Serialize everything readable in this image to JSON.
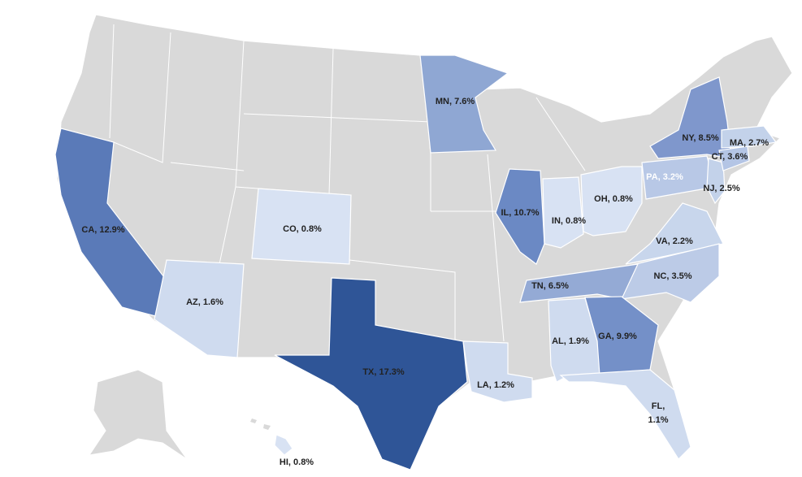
{
  "states": [
    {
      "label": "CA, 12.9%",
      "value": 12.9,
      "color": "#5a7ab8"
    },
    {
      "label": "AZ, 1.6%",
      "value": 1.6,
      "color": "#cfdbef"
    },
    {
      "label": "CO, 0.8%",
      "value": 0.8,
      "color": "#d8e2f3"
    },
    {
      "label": "TX, 17.3%",
      "value": 17.3,
      "color": "#2f5597"
    },
    {
      "label": "MN, 7.6%",
      "value": 7.6,
      "color": "#8fa7d3"
    },
    {
      "label": "IL, 10.7%",
      "value": 10.7,
      "color": "#6b89c4"
    },
    {
      "label": "IN, 0.8%",
      "value": 0.8,
      "color": "#d8e2f3"
    },
    {
      "label": "OH, 0.8%",
      "value": 0.8,
      "color": "#d8e2f3"
    },
    {
      "label": "PA, 3.2%",
      "value": 3.2,
      "color": "#b8c8e6"
    },
    {
      "label": "NY, 8.5%",
      "value": 8.5,
      "color": "#7f97cc"
    },
    {
      "label": "NJ, 2.5%",
      "value": 2.5,
      "color": "#c3d2ea"
    },
    {
      "label": "CT, 3.6%",
      "value": 3.6,
      "color": "#b4c5e5"
    },
    {
      "label": "MA, 2.7%",
      "value": 2.7,
      "color": "#c3d2ea"
    },
    {
      "label": "VA, 2.2%",
      "value": 2.2,
      "color": "#c8d6ec"
    },
    {
      "label": "NC, 3.5%",
      "value": 3.5,
      "color": "#bccbe7"
    },
    {
      "label": "TN, 6.5%",
      "value": 6.5,
      "color": "#94aad5"
    },
    {
      "label": "GA, 9.9%",
      "value": 9.9,
      "color": "#7490c8"
    },
    {
      "label": "AL, 1.9%",
      "value": 1.9,
      "color": "#cfdbef"
    },
    {
      "label": [
        "FL,",
        "1.1%"
      ],
      "value": 1.1,
      "color": "#cfdbef"
    },
    {
      "label": "LA, 1.2%",
      "value": 1.2,
      "color": "#cfdbef"
    },
    {
      "label": "HI, 0.8%",
      "value": 0.8,
      "color": "#d8e2f3"
    }
  ]
}
